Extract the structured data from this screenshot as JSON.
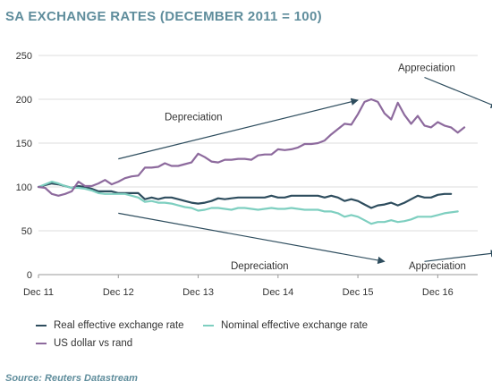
{
  "chart_data": {
    "type": "line",
    "title": "SA EXCHANGE RATES (DECEMBER 2011 = 100)",
    "source": "Source: Reuters Datastream",
    "x_tick_labels": [
      "Dec 11",
      "Dec 12",
      "Dec 13",
      "Dec 14",
      "Dec 15",
      "Dec 16"
    ],
    "y_ticks": [
      0,
      50,
      100,
      150,
      200,
      250
    ],
    "ylim": [
      0,
      250
    ],
    "grid": "horizontal",
    "legend_position": "bottom",
    "x_start": "2011-12",
    "month_step": 1,
    "series": [
      {
        "name": "Real effective exchange rate",
        "color": "#2e4d5e",
        "values": [
          100,
          102,
          104,
          103,
          101,
          99,
          101,
          100,
          98,
          95,
          95,
          95,
          93,
          93,
          93,
          93,
          86,
          88,
          86,
          88,
          88,
          86,
          84,
          82,
          81,
          82,
          84,
          87,
          86,
          87,
          88,
          88,
          88,
          88,
          88,
          90,
          88,
          88,
          90,
          90,
          90,
          90,
          90,
          88,
          90,
          88,
          84,
          86,
          84,
          80,
          76,
          79,
          80,
          82,
          79,
          82,
          86,
          90,
          88,
          88,
          91,
          92,
          92
        ]
      },
      {
        "name": "Nominal effective exchange rate",
        "color": "#7ecfc0",
        "values": [
          100,
          103,
          106,
          104,
          101,
          99,
          99,
          98,
          96,
          93,
          92,
          92,
          92,
          92,
          90,
          88,
          83,
          84,
          82,
          82,
          81,
          79,
          77,
          76,
          73,
          74,
          76,
          76,
          75,
          74,
          76,
          76,
          75,
          74,
          75,
          76,
          75,
          75,
          76,
          75,
          74,
          74,
          74,
          72,
          72,
          70,
          66,
          68,
          66,
          62,
          58,
          60,
          60,
          62,
          60,
          61,
          63,
          66,
          66,
          66,
          68,
          70,
          71,
          72
        ]
      },
      {
        "name": "US dollar vs rand",
        "color": "#8d6a9d",
        "values": [
          100,
          99,
          92,
          90,
          92,
          95,
          106,
          101,
          101,
          104,
          108,
          103,
          106,
          110,
          112,
          113,
          122,
          122,
          123,
          127,
          124,
          124,
          126,
          128,
          138,
          134,
          129,
          128,
          131,
          131,
          132,
          132,
          131,
          136,
          137,
          137,
          143,
          142,
          143,
          145,
          149,
          149,
          150,
          153,
          160,
          166,
          172,
          171,
          183,
          197,
          200,
          197,
          184,
          177,
          196,
          182,
          172,
          181,
          170,
          168,
          174,
          170,
          168,
          162,
          168
        ]
      }
    ],
    "annotations": [
      {
        "text": "Depreciation",
        "value": 180,
        "arrow": {
          "from": [
            12,
            132
          ],
          "to": [
            48,
            199
          ]
        }
      },
      {
        "text": "Appreciation",
        "value": 236,
        "arrow": {
          "from": [
            58,
            225
          ],
          "to": [
            69,
            191
          ]
        }
      },
      {
        "text": "Depreciation",
        "value": 10,
        "arrow": {
          "from": [
            12,
            70
          ],
          "to": [
            52,
            15
          ]
        }
      },
      {
        "text": "Appreciation",
        "value": 10,
        "arrow": {
          "from": [
            58,
            15
          ],
          "to": [
            69,
            25
          ]
        }
      }
    ]
  }
}
